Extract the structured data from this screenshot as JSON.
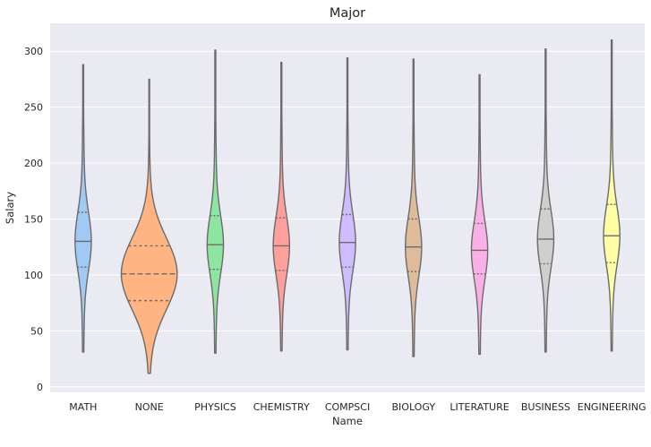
{
  "chart_data": {
    "type": "violin",
    "title": "Major",
    "xlabel": "Name",
    "ylabel": "Salary",
    "ylim": [
      -5,
      325
    ],
    "yticks": [
      0,
      50,
      100,
      150,
      200,
      250,
      300
    ],
    "grid": true,
    "inner": "quartile",
    "colors": {
      "background": "#eaeaf2",
      "grid": "#ffffff",
      "edge": "#6b6b6b"
    },
    "categories": [
      {
        "name": "MATH",
        "color": "#a1c9f4",
        "min": 31,
        "max": 288,
        "q1": 107,
        "median": 130,
        "q3": 156
      },
      {
        "name": "NONE",
        "color": "#ffb482",
        "min": 12,
        "max": 275,
        "q1": 77,
        "median": 101,
        "q3": 126
      },
      {
        "name": "PHYSICS",
        "color": "#8de5a1",
        "min": 30,
        "max": 301,
        "q1": 105,
        "median": 127,
        "q3": 153
      },
      {
        "name": "CHEMISTRY",
        "color": "#ff9f9b",
        "min": 32,
        "max": 290,
        "q1": 104,
        "median": 126,
        "q3": 151
      },
      {
        "name": "COMPSCI",
        "color": "#d0bbff",
        "min": 33,
        "max": 294,
        "q1": 107,
        "median": 129,
        "q3": 154
      },
      {
        "name": "BIOLOGY",
        "color": "#debb9b",
        "min": 27,
        "max": 293,
        "q1": 103,
        "median": 125,
        "q3": 150
      },
      {
        "name": "LITERATURE",
        "color": "#fab0e4",
        "min": 29,
        "max": 279,
        "q1": 101,
        "median": 122,
        "q3": 146
      },
      {
        "name": "BUSINESS",
        "color": "#cfcfcf",
        "min": 31,
        "max": 302,
        "q1": 110,
        "median": 132,
        "q3": 159
      },
      {
        "name": "ENGINEERING",
        "color": "#fffea3",
        "min": 32,
        "max": 310,
        "q1": 111,
        "median": 135,
        "q3": 163
      }
    ]
  }
}
